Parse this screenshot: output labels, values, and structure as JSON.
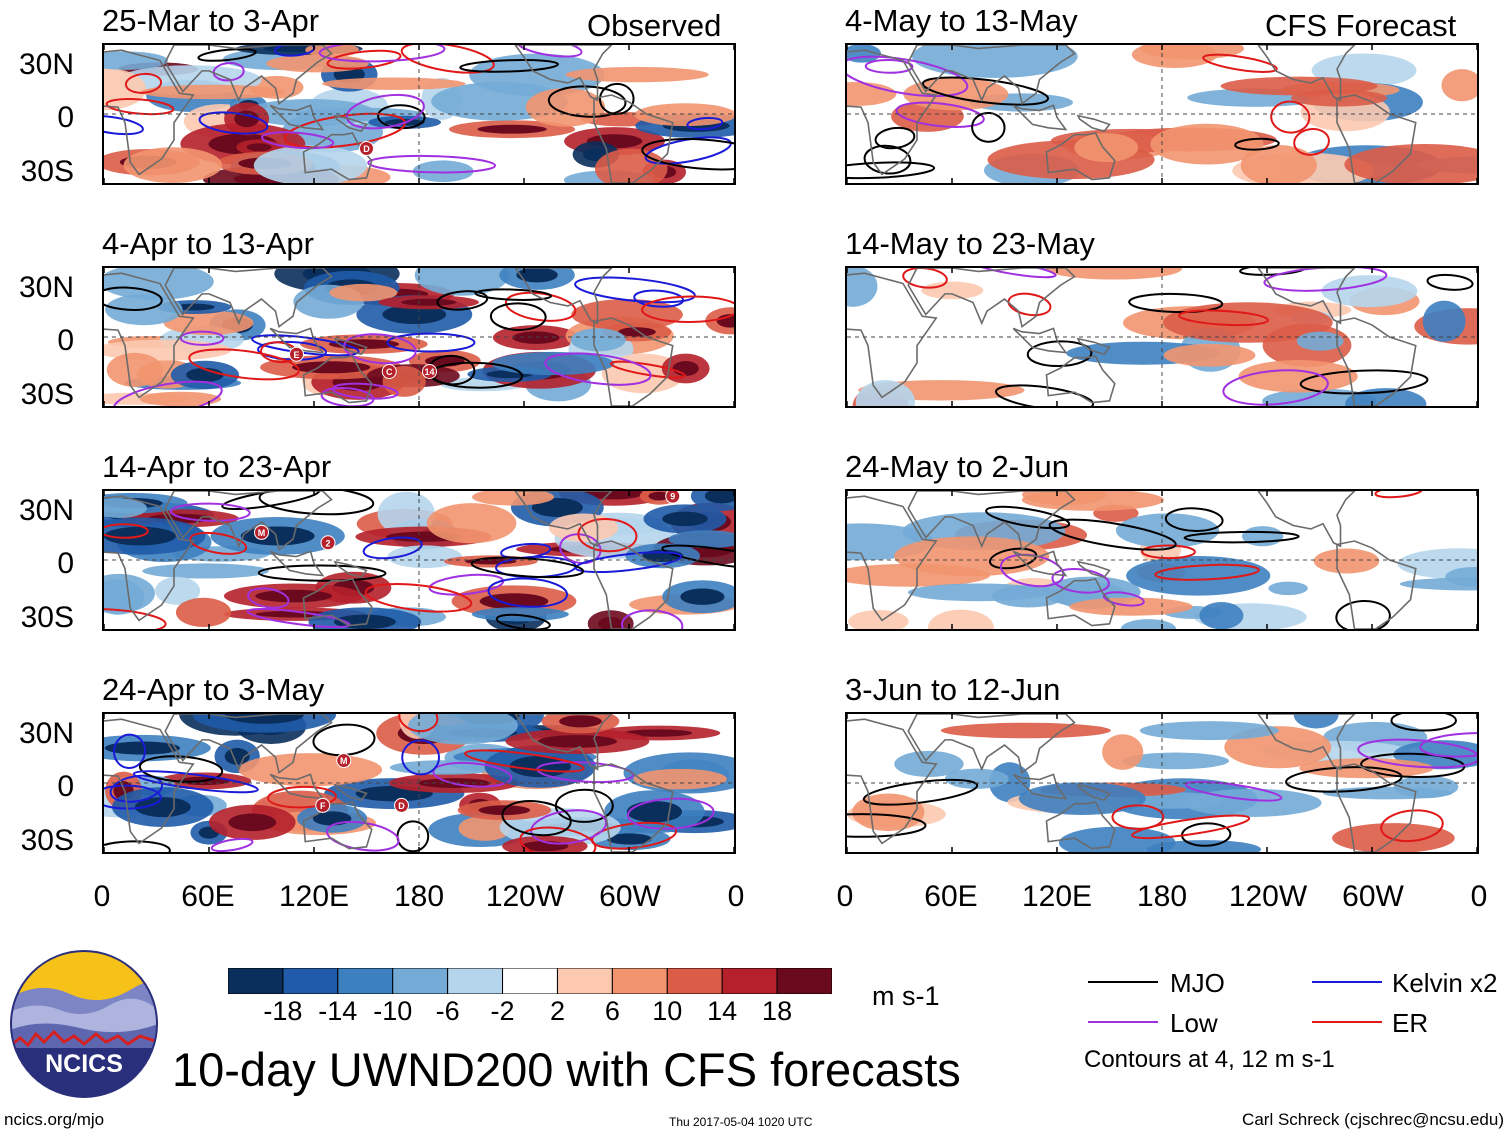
{
  "left_header": "Observed",
  "right_header": "CFS Forecast",
  "left_panels": [
    {
      "title": "25-Mar to 3-Apr",
      "markers": [
        {
          "label": "D",
          "lon": 150,
          "lat": -20
        }
      ]
    },
    {
      "title": "4-Apr to 13-Apr",
      "markers": [
        {
          "label": "E",
          "lon": 110,
          "lat": -10
        },
        {
          "label": "C",
          "lon": 163,
          "lat": -20
        },
        {
          "label": "14",
          "lon": 186,
          "lat": -20
        }
      ]
    },
    {
      "title": "14-Apr to 23-Apr",
      "markers": [
        {
          "label": "M",
          "lon": 90,
          "lat": 16
        },
        {
          "label": "2",
          "lon": 128,
          "lat": 10
        },
        {
          "label": "9",
          "lon": 325,
          "lat": 37
        }
      ]
    },
    {
      "title": "24-Apr to 3-May",
      "markers": [
        {
          "label": "M",
          "lon": 137,
          "lat": 13
        },
        {
          "label": "F",
          "lon": 125,
          "lat": -13
        },
        {
          "label": "D",
          "lon": 170,
          "lat": -13
        }
      ]
    }
  ],
  "right_panels": [
    {
      "title": "4-May to 13-May"
    },
    {
      "title": "14-May to 23-May"
    },
    {
      "title": "24-May to 2-Jun"
    },
    {
      "title": "3-Jun to 12-Jun"
    }
  ],
  "y_ticks": [
    "30N",
    "0",
    "30S"
  ],
  "x_ticks": [
    "0",
    "60E",
    "120E",
    "180",
    "120W",
    "60W",
    "0"
  ],
  "colorbar": {
    "colors": [
      "#0a2f5c",
      "#1f5ba8",
      "#3d80c0",
      "#73abd6",
      "#b5d5ec",
      "#ffffff",
      "#fcc9b0",
      "#f2956f",
      "#db5c47",
      "#b5202b",
      "#6b0a1e"
    ],
    "labels": [
      "-18",
      "-14",
      "-10",
      "-6",
      "-2",
      "2",
      "6",
      "10",
      "14",
      "18"
    ],
    "units": "m s-1"
  },
  "legend": {
    "items": [
      {
        "label": "MJO",
        "color": "#000000"
      },
      {
        "label": "Kelvin x2",
        "color": "#1a1ad8"
      },
      {
        "label": "Low",
        "color": "#a030e0"
      },
      {
        "label": "ER",
        "color": "#e01818"
      }
    ],
    "note": "Contours at 4, 12 m s-1"
  },
  "logo_text": "NCICS",
  "main_title": "10-day UWND200 with CFS forecasts",
  "footer": {
    "left": "ncics.org/mjo",
    "center": "Thu 2017-05-04 1020 UTC",
    "right": "Carl Schreck (cjschrec@ncsu.edu)"
  }
}
